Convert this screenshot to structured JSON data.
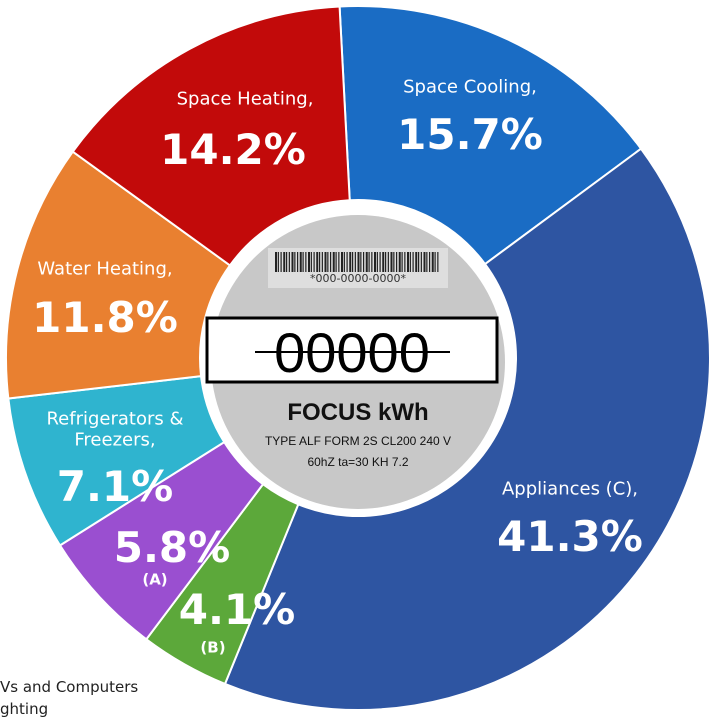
{
  "chart_data": {
    "type": "pie",
    "categories": [
      "Space Cooling,",
      "Appliances (C),",
      "(B)",
      "(A)",
      "Refrigerators & Freezers,",
      "Water Heating,",
      "Space Heating,"
    ],
    "values": [
      15.7,
      41.3,
      4.1,
      5.8,
      7.1,
      11.8,
      14.2
    ],
    "value_labels": [
      "15.7%",
      "41.3%",
      "4.1%",
      "5.8%",
      "7.1%",
      "11.8%",
      "14.2%"
    ],
    "colors": [
      "#1a6cc4",
      "#2e55a2",
      "#5ca83a",
      "#9a4fd0",
      "#2fb4cf",
      "#e98030",
      "#c20a0a"
    ],
    "donut": true,
    "center": {
      "barcode": "*000-0000-0000*",
      "reading": "00000",
      "title": "FOCUS kWh",
      "lines": [
        "TYPE ALF FORM 2S CL200 240 V",
        "60hZ ta=30 KH 7.2"
      ]
    },
    "notes": [
      "Vs and Computers",
      "ghting"
    ]
  }
}
